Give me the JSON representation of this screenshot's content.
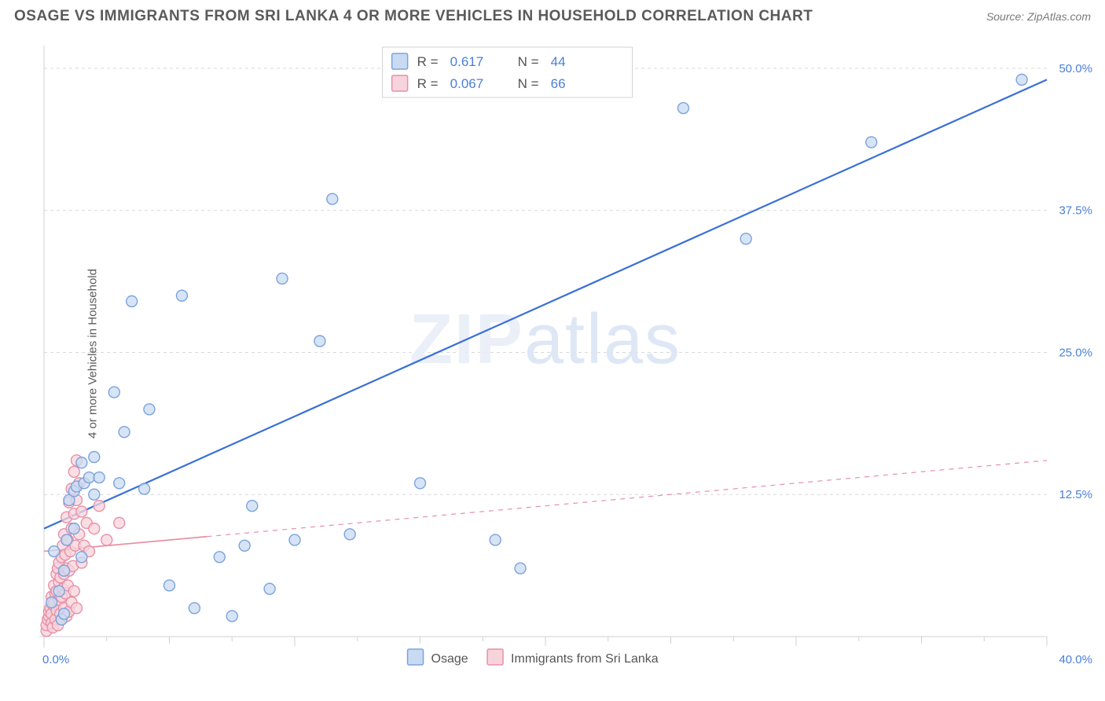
{
  "title": "OSAGE VS IMMIGRANTS FROM SRI LANKA 4 OR MORE VEHICLES IN HOUSEHOLD CORRELATION CHART",
  "source": "Source: ZipAtlas.com",
  "y_axis_label": "4 or more Vehicles in Household",
  "watermark": "ZIPatlas",
  "chart": {
    "type": "scatter",
    "background": "#ffffff",
    "grid_color": "#d9d9d9",
    "axis_color": "#d0d0d0",
    "xlim": [
      0,
      40
    ],
    "ylim": [
      0,
      52
    ],
    "x_ticks": [
      0,
      2.5,
      5,
      7.5,
      10,
      12.5,
      15,
      17.5,
      20,
      22.5,
      25,
      27.5,
      30,
      32.5,
      35,
      37.5,
      40
    ],
    "x_tick_labels": {
      "0": "0.0%",
      "40": "40.0%"
    },
    "y_ticks": [
      12.5,
      25,
      37.5,
      50
    ],
    "y_tick_labels": {
      "12.5": "12.5%",
      "25": "25.0%",
      "37.5": "37.5%",
      "50": "50.0%"
    },
    "series": [
      {
        "name": "Osage",
        "color_fill": "#c9dbf2",
        "color_stroke": "#7ba3dd",
        "marker_r": 7,
        "line_color": "#3a6fd8",
        "line_width": 2.2,
        "line_solid_until": 40,
        "trend": {
          "x1": 0,
          "y1": 9.5,
          "x2": 40,
          "y2": 49.0
        },
        "points": [
          [
            0.3,
            3.0
          ],
          [
            0.4,
            7.5
          ],
          [
            0.6,
            4.0
          ],
          [
            0.7,
            1.5
          ],
          [
            0.8,
            2.0
          ],
          [
            0.8,
            5.8
          ],
          [
            0.9,
            8.5
          ],
          [
            1.0,
            12.0
          ],
          [
            1.2,
            9.5
          ],
          [
            1.2,
            12.8
          ],
          [
            1.3,
            13.2
          ],
          [
            1.5,
            7.0
          ],
          [
            1.5,
            15.3
          ],
          [
            1.6,
            13.5
          ],
          [
            1.8,
            14.0
          ],
          [
            2.0,
            12.5
          ],
          [
            2.0,
            15.8
          ],
          [
            2.2,
            14.0
          ],
          [
            2.8,
            21.5
          ],
          [
            3.0,
            13.5
          ],
          [
            3.2,
            18.0
          ],
          [
            3.5,
            29.5
          ],
          [
            4.0,
            13.0
          ],
          [
            4.2,
            20.0
          ],
          [
            5.0,
            4.5
          ],
          [
            5.5,
            30.0
          ],
          [
            6.0,
            2.5
          ],
          [
            7.0,
            7.0
          ],
          [
            7.5,
            1.8
          ],
          [
            8.0,
            8.0
          ],
          [
            8.3,
            11.5
          ],
          [
            9.0,
            4.2
          ],
          [
            9.5,
            31.5
          ],
          [
            10.0,
            8.5
          ],
          [
            11.0,
            26.0
          ],
          [
            11.5,
            38.5
          ],
          [
            12.2,
            9.0
          ],
          [
            15.0,
            13.5
          ],
          [
            18.0,
            8.5
          ],
          [
            19.0,
            6.0
          ],
          [
            25.5,
            46.5
          ],
          [
            28.0,
            35.0
          ],
          [
            33.0,
            43.5
          ],
          [
            39.0,
            49.0
          ]
        ]
      },
      {
        "name": "Immigrants from Sri Lanka",
        "color_fill": "#f7d4dc",
        "color_stroke": "#e791a6",
        "marker_r": 7,
        "line_color": "#e791a6",
        "line_width": 1.8,
        "line_solid_until": 6.5,
        "trend": {
          "x1": 0,
          "y1": 7.5,
          "x2": 40,
          "y2": 15.5
        },
        "points": [
          [
            0.1,
            0.5
          ],
          [
            0.1,
            1.0
          ],
          [
            0.15,
            1.5
          ],
          [
            0.2,
            1.8
          ],
          [
            0.2,
            2.2
          ],
          [
            0.25,
            2.5
          ],
          [
            0.3,
            1.2
          ],
          [
            0.3,
            2.0
          ],
          [
            0.3,
            3.5
          ],
          [
            0.35,
            0.8
          ],
          [
            0.35,
            2.8
          ],
          [
            0.4,
            3.0
          ],
          [
            0.4,
            4.5
          ],
          [
            0.45,
            1.5
          ],
          [
            0.45,
            3.8
          ],
          [
            0.5,
            2.3
          ],
          [
            0.5,
            4.0
          ],
          [
            0.5,
            5.5
          ],
          [
            0.55,
            1.0
          ],
          [
            0.55,
            6.0
          ],
          [
            0.6,
            3.2
          ],
          [
            0.6,
            4.8
          ],
          [
            0.6,
            6.5
          ],
          [
            0.65,
            2.0
          ],
          [
            0.65,
            5.2
          ],
          [
            0.7,
            1.5
          ],
          [
            0.7,
            3.5
          ],
          [
            0.7,
            7.0
          ],
          [
            0.75,
            4.2
          ],
          [
            0.75,
            8.0
          ],
          [
            0.8,
            2.5
          ],
          [
            0.8,
            5.5
          ],
          [
            0.8,
            9.0
          ],
          [
            0.85,
            3.8
          ],
          [
            0.85,
            7.2
          ],
          [
            0.9,
            1.8
          ],
          [
            0.9,
            6.0
          ],
          [
            0.9,
            10.5
          ],
          [
            0.95,
            4.5
          ],
          [
            0.95,
            8.5
          ],
          [
            1.0,
            2.2
          ],
          [
            1.0,
            5.8
          ],
          [
            1.0,
            11.8
          ],
          [
            1.05,
            7.5
          ],
          [
            1.1,
            3.0
          ],
          [
            1.1,
            9.5
          ],
          [
            1.1,
            13.0
          ],
          [
            1.15,
            6.2
          ],
          [
            1.2,
            4.0
          ],
          [
            1.2,
            10.8
          ],
          [
            1.2,
            14.5
          ],
          [
            1.25,
            8.0
          ],
          [
            1.3,
            2.5
          ],
          [
            1.3,
            12.0
          ],
          [
            1.3,
            15.5
          ],
          [
            1.4,
            9.0
          ],
          [
            1.4,
            13.5
          ],
          [
            1.5,
            6.5
          ],
          [
            1.5,
            11.0
          ],
          [
            1.6,
            8.0
          ],
          [
            1.7,
            10.0
          ],
          [
            1.8,
            7.5
          ],
          [
            2.0,
            9.5
          ],
          [
            2.2,
            11.5
          ],
          [
            2.5,
            8.5
          ],
          [
            3.0,
            10.0
          ]
        ]
      }
    ],
    "legend_top": {
      "rows": [
        {
          "swatch_fill": "#c9dbf2",
          "swatch_stroke": "#7ba3dd",
          "r_label": "R =",
          "r_value": "0.617",
          "n_label": "N =",
          "n_value": "44"
        },
        {
          "swatch_fill": "#f7d4dc",
          "swatch_stroke": "#e791a6",
          "r_label": "R =",
          "r_value": "0.067",
          "n_label": "N =",
          "n_value": "66"
        }
      ]
    },
    "legend_bottom": [
      {
        "swatch_fill": "#c9dbf2",
        "swatch_stroke": "#7ba3dd",
        "label": "Osage"
      },
      {
        "swatch_fill": "#f7d4dc",
        "swatch_stroke": "#e791a6",
        "label": "Immigrants from Sri Lanka"
      }
    ]
  }
}
